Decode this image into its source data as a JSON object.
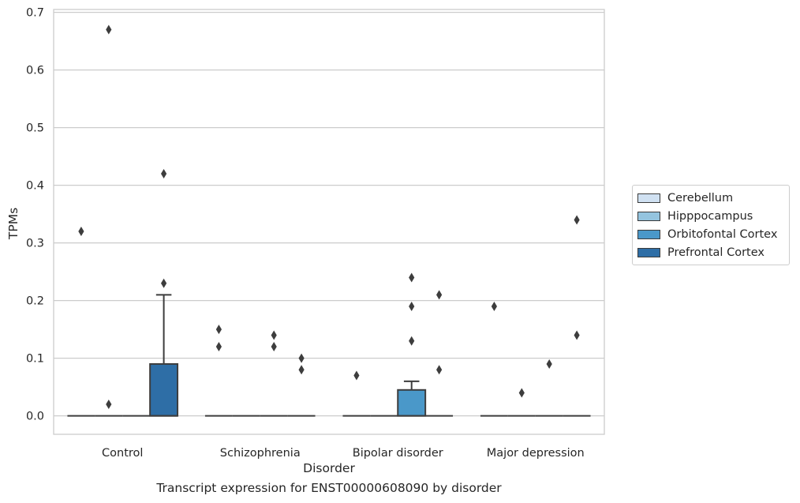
{
  "chart_data": {
    "type": "box",
    "title": "",
    "caption": "Transcript expression for ENST00000608090 by disorder",
    "xlabel": "Disorder",
    "ylabel": "TPMs",
    "ylim": [
      -0.032,
      0.705
    ],
    "yticks": [
      "0.0",
      "0.1",
      "0.2",
      "0.3",
      "0.4",
      "0.5",
      "0.6",
      "0.7"
    ],
    "ytick_values": [
      0,
      0.1,
      0.2,
      0.3,
      0.4,
      0.5,
      0.6,
      0.7
    ],
    "grid": "horizontal",
    "legend_position": "right",
    "categories": [
      "Control",
      "Schizophrenia",
      "Bipolar disorder",
      "Major depression"
    ],
    "series": [
      {
        "name": "Cerebellum",
        "color": "#d0e1f2",
        "boxes": [
          {
            "q1": 0,
            "median": 0,
            "q3": 0,
            "whisker_low": 0,
            "whisker_high": 0,
            "outliers": [
              0.32
            ]
          },
          {
            "q1": 0,
            "median": 0,
            "q3": 0,
            "whisker_low": 0,
            "whisker_high": 0,
            "outliers": [
              0.12,
              0.15
            ]
          },
          {
            "q1": 0,
            "median": 0,
            "q3": 0,
            "whisker_low": 0,
            "whisker_high": 0,
            "outliers": [
              0.07
            ]
          },
          {
            "q1": 0,
            "median": 0,
            "q3": 0,
            "whisker_low": 0,
            "whisker_high": 0,
            "outliers": [
              0.19
            ]
          }
        ]
      },
      {
        "name": "Hipppocampus",
        "color": "#94c4df",
        "boxes": [
          {
            "q1": 0,
            "median": 0,
            "q3": 0,
            "whisker_low": 0,
            "whisker_high": 0,
            "outliers": [
              0.67,
              0.02
            ]
          },
          {
            "q1": 0,
            "median": 0,
            "q3": 0,
            "whisker_low": 0,
            "whisker_high": 0,
            "outliers": []
          },
          {
            "q1": 0,
            "median": 0,
            "q3": 0,
            "whisker_low": 0,
            "whisker_high": 0,
            "outliers": []
          },
          {
            "q1": 0,
            "median": 0,
            "q3": 0,
            "whisker_low": 0,
            "whisker_high": 0,
            "outliers": [
              0.04
            ]
          }
        ]
      },
      {
        "name": "Orbitofontal Cortex",
        "color": "#4a98c9",
        "boxes": [
          {
            "q1": 0,
            "median": 0,
            "q3": 0,
            "whisker_low": 0,
            "whisker_high": 0,
            "outliers": []
          },
          {
            "q1": 0,
            "median": 0,
            "q3": 0,
            "whisker_low": 0,
            "whisker_high": 0,
            "outliers": [
              0.12,
              0.14
            ]
          },
          {
            "q1": 0,
            "median": 0,
            "q3": 0.045,
            "whisker_low": 0,
            "whisker_high": 0.06,
            "outliers": [
              0.13,
              0.19,
              0.24
            ]
          },
          {
            "q1": 0,
            "median": 0,
            "q3": 0,
            "whisker_low": 0,
            "whisker_high": 0,
            "outliers": [
              0.09
            ]
          }
        ]
      },
      {
        "name": "Prefrontal Cortex",
        "color": "#2e6ea6",
        "boxes": [
          {
            "q1": 0,
            "median": 0,
            "q3": 0.09,
            "whisker_low": 0,
            "whisker_high": 0.21,
            "outliers": [
              0.23,
              0.42
            ]
          },
          {
            "q1": 0,
            "median": 0,
            "q3": 0,
            "whisker_low": 0,
            "whisker_high": 0,
            "outliers": [
              0.08,
              0.1
            ]
          },
          {
            "q1": 0,
            "median": 0,
            "q3": 0,
            "whisker_low": 0,
            "whisker_high": 0,
            "outliers": [
              0.08,
              0.21
            ]
          },
          {
            "q1": 0,
            "median": 0,
            "q3": 0,
            "whisker_low": 0,
            "whisker_high": 0,
            "outliers": [
              0.14,
              0.34
            ]
          }
        ]
      }
    ]
  }
}
